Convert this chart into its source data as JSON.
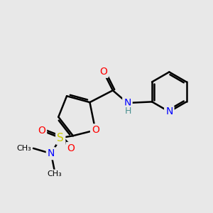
{
  "background_color": "#e8e8e8",
  "bond_color": "#000000",
  "bond_width": 1.8,
  "atom_colors": {
    "O": "#ff0000",
    "N": "#0000ff",
    "S": "#cccc00",
    "C": "#000000",
    "H": "#4a9090"
  },
  "font_size": 10,
  "fig_size": [
    3.0,
    3.0
  ],
  "dpi": 100
}
